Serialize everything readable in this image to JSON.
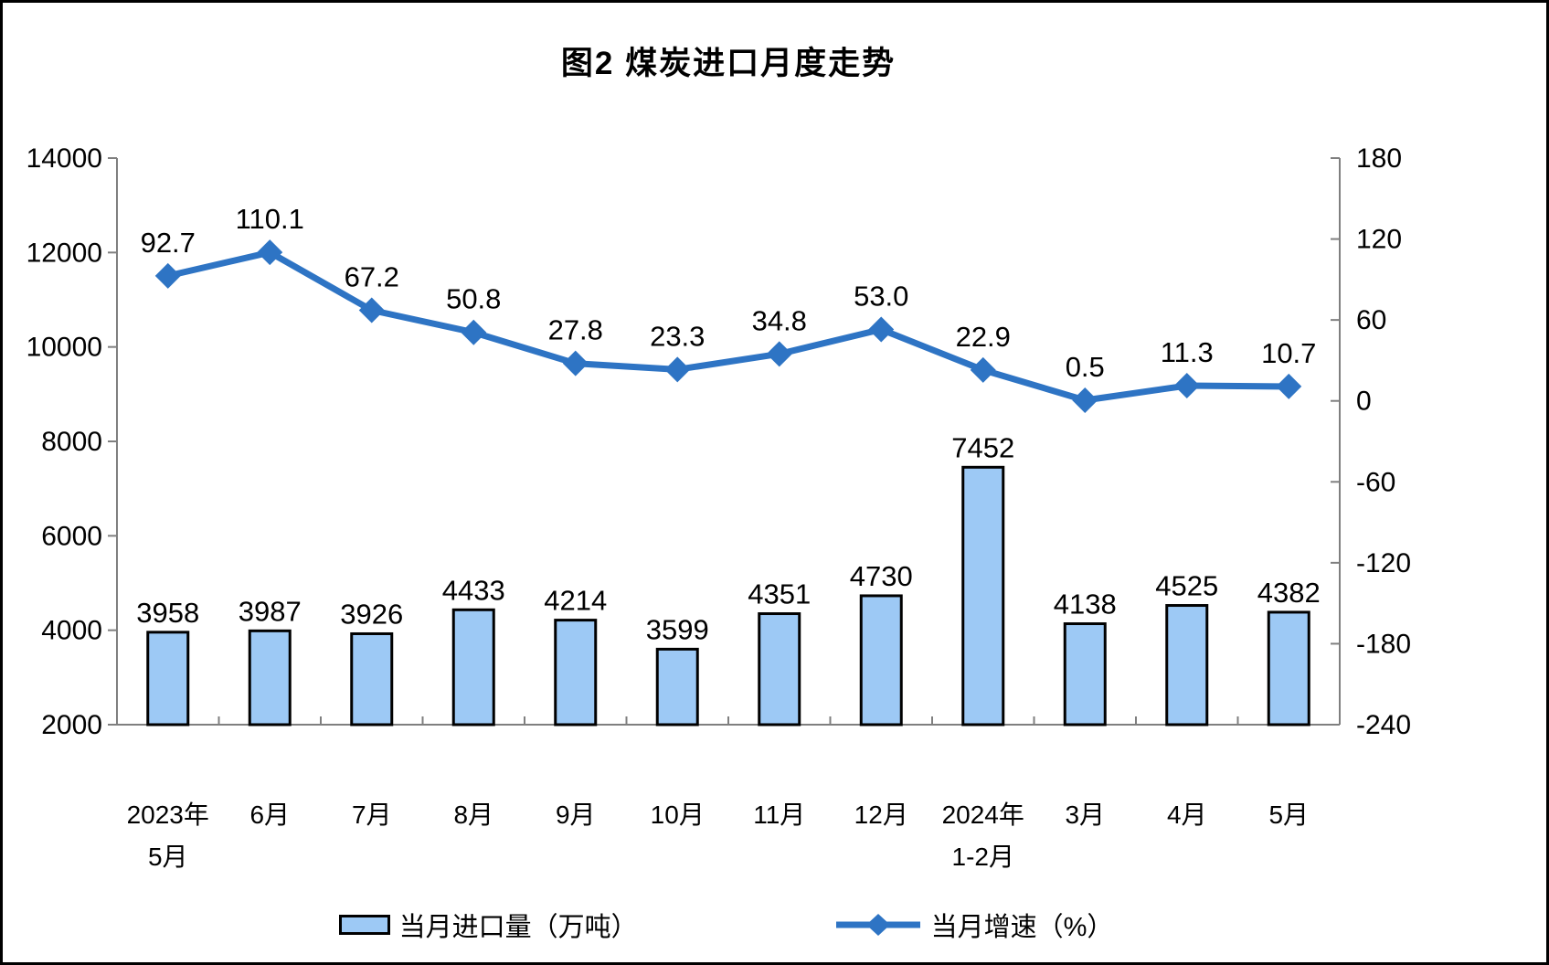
{
  "chart_data": {
    "type": "combo",
    "title": "图2 煤炭进口月度走势",
    "categories": [
      "2023年\n5月",
      "6月",
      "7月",
      "8月",
      "9月",
      "10月",
      "11月",
      "12月",
      "2024年\n1-2月",
      "3月",
      "4月",
      "5月"
    ],
    "series": [
      {
        "name": "当月进口量（万吨）",
        "type": "bar",
        "axis": "left",
        "values": [
          3958,
          3987,
          3926,
          4433,
          4214,
          3599,
          4351,
          4730,
          7452,
          4138,
          4525,
          4382
        ]
      },
      {
        "name": "当月增速（%）",
        "type": "line",
        "axis": "right",
        "values": [
          92.7,
          110.1,
          67.2,
          50.8,
          27.8,
          23.3,
          34.8,
          53.0,
          22.9,
          0.5,
          11.3,
          10.7
        ]
      }
    ],
    "left_axis": {
      "min": 2000,
      "max": 14000,
      "step": 2000,
      "ticks": [
        14000,
        12000,
        10000,
        8000,
        6000,
        4000,
        2000
      ]
    },
    "right_axis": {
      "min": -240,
      "max": 180,
      "step": 60,
      "ticks": [
        180,
        120,
        60,
        0,
        -60,
        -120,
        -180,
        -240
      ]
    },
    "legend_position": "bottom",
    "grid": false,
    "colors": {
      "bar_fill": "#9DC9F5",
      "bar_border": "#000000",
      "line": "#2E74C4",
      "axis_line": "#7F7F7F",
      "text": "#000000"
    }
  }
}
